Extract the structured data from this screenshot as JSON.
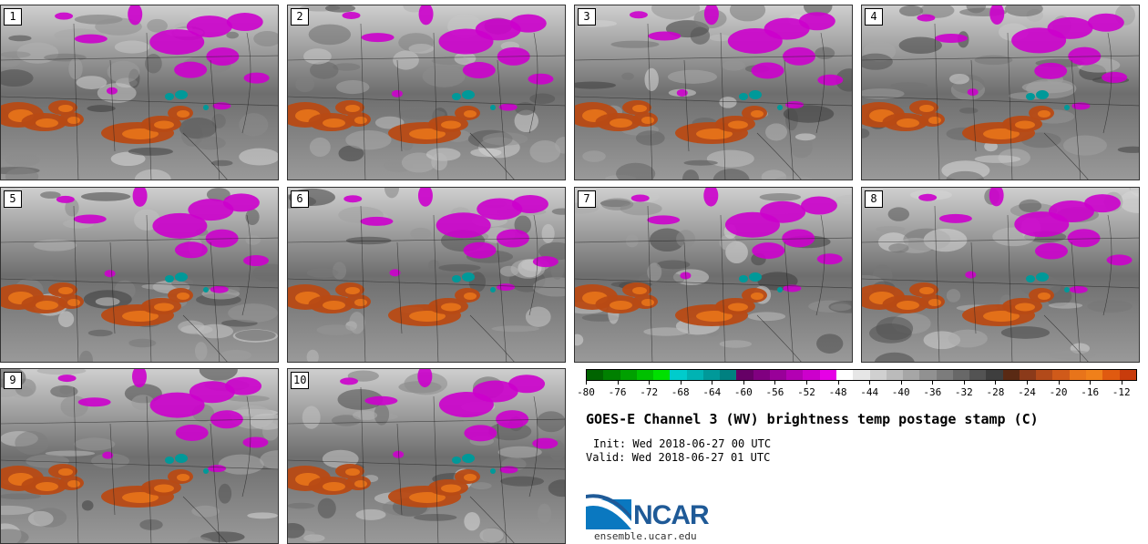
{
  "panels": [
    {
      "label": "1"
    },
    {
      "label": "2"
    },
    {
      "label": "3"
    },
    {
      "label": "4"
    },
    {
      "label": "5"
    },
    {
      "label": "6"
    },
    {
      "label": "7"
    },
    {
      "label": "8"
    },
    {
      "label": "9"
    },
    {
      "label": "10"
    }
  ],
  "chart_data": {
    "type": "heatmap",
    "title": "GOES-E Channel 3 (WV) brightness temp postage stamp (C)",
    "init": "Init: Wed 2018-06-27 00 UTC",
    "valid": "Valid: Wed 2018-06-27 01 UTC",
    "colorbar": {
      "min": -80,
      "max": -10,
      "tick_labels": [
        "-80",
        "-76",
        "-72",
        "-68",
        "-64",
        "-60",
        "-56",
        "-52",
        "-48",
        "-44",
        "-40",
        "-36",
        "-32",
        "-28",
        "-24",
        "-20",
        "-16",
        "-12"
      ],
      "colors": [
        "#006400",
        "#008000",
        "#00a000",
        "#00c000",
        "#00e000",
        "#00cccc",
        "#00b3b3",
        "#009999",
        "#008080",
        "#660066",
        "#800080",
        "#990099",
        "#b300b3",
        "#cc00cc",
        "#e600e6",
        "#ffffff",
        "#e6e6e6",
        "#d0d0d0",
        "#bbbbbb",
        "#a6a6a6",
        "#919191",
        "#7c7c7c",
        "#686868",
        "#535353",
        "#3e3e3e",
        "#5a2a14",
        "#8b3a1a",
        "#b24a1a",
        "#d05a1a",
        "#e8741a",
        "#f0801a",
        "#e05a10",
        "#c83c0c"
      ]
    }
  },
  "logo": {
    "text": "NCAR",
    "site": "ensemble.ucar.edu"
  },
  "colors": {
    "moist": "#cc00cc",
    "dry": "#b84a14",
    "cold": "#009999"
  }
}
